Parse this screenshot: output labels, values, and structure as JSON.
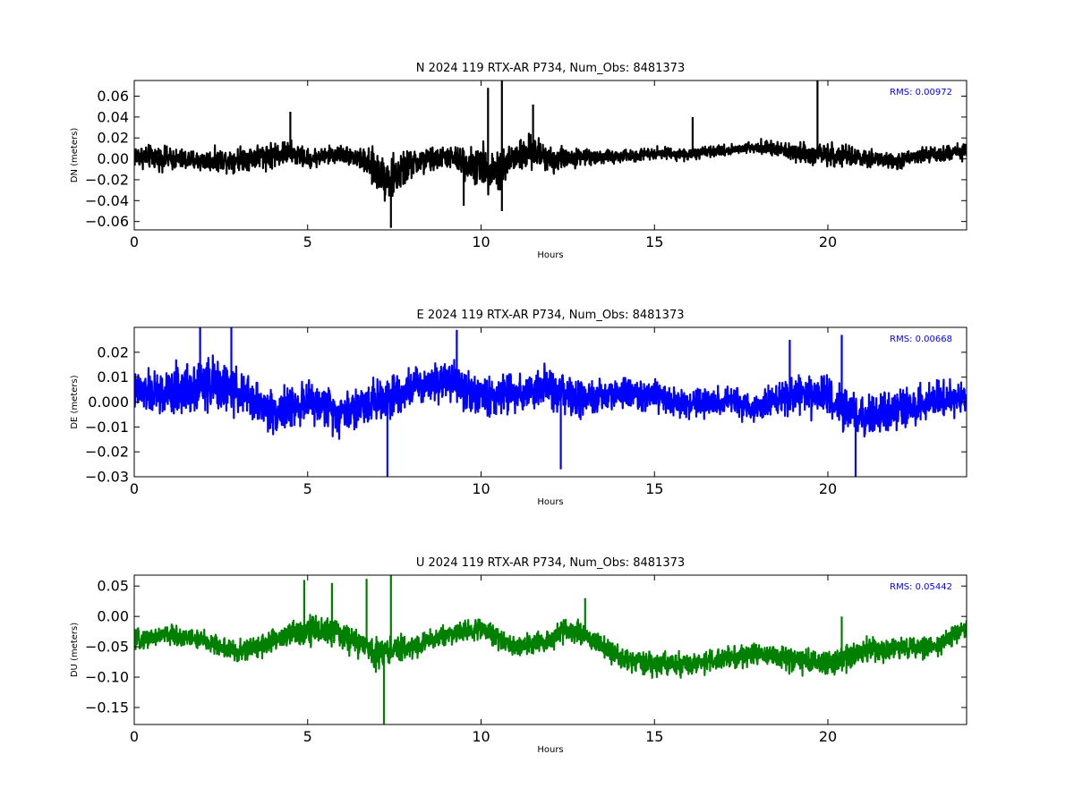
{
  "chart_data": [
    {
      "type": "line",
      "title": "N 2024 119 RTX-AR  P734, Num_Obs: 8481373",
      "xlabel": "Hours",
      "ylabel": "DN (meters)",
      "xlim": [
        0,
        24
      ],
      "ylim": [
        -0.068,
        0.075
      ],
      "xticks": [
        0,
        5,
        10,
        15,
        20
      ],
      "xtick_labels": [
        "0",
        "5",
        "10",
        "15",
        "20"
      ],
      "yticks": [
        -0.06,
        -0.04,
        -0.02,
        0.0,
        0.02,
        0.04,
        0.06
      ],
      "ytick_labels": [
        "−0.06",
        "−0.04",
        "−0.02",
        "0.00",
        "0.02",
        "0.04",
        "0.06"
      ],
      "annotation": "RMS:  0.00972",
      "annotation_color": "#0000ff",
      "grid": false,
      "series": [
        {
          "color": "#000000",
          "trend_x": [
            0,
            1,
            2,
            3,
            4,
            4.5,
            5,
            6,
            6.5,
            7,
            7.4,
            8,
            9,
            10,
            10.5,
            11,
            11.5,
            12,
            13,
            14,
            15,
            16,
            17,
            18,
            19,
            20,
            21,
            22,
            23,
            24
          ],
          "trend_y": [
            0.003,
            0.0,
            -0.002,
            0.0,
            0.004,
            0.006,
            0.0,
            0.005,
            0.0,
            -0.012,
            -0.02,
            -0.005,
            0.002,
            -0.008,
            -0.01,
            0.002,
            0.006,
            0.0,
            0.002,
            0.002,
            0.006,
            0.004,
            0.008,
            0.012,
            0.006,
            0.004,
            0.0,
            -0.002,
            0.004,
            0.008
          ],
          "amplitude_x": [
            0,
            2,
            4,
            5,
            6,
            6.5,
            7,
            7.5,
            8,
            9,
            10,
            10.5,
            11,
            12,
            12.5,
            13,
            15,
            16,
            17,
            18,
            19,
            20,
            21,
            22,
            24
          ],
          "amplitude_y": [
            0.016,
            0.014,
            0.018,
            0.013,
            0.012,
            0.014,
            0.028,
            0.03,
            0.02,
            0.014,
            0.028,
            0.03,
            0.024,
            0.02,
            0.014,
            0.01,
            0.008,
            0.008,
            0.007,
            0.008,
            0.012,
            0.016,
            0.012,
            0.011,
            0.011
          ],
          "spikes": [
            [
              4.5,
              0.045
            ],
            [
              7.4,
              -0.066
            ],
            [
              10.2,
              0.068
            ],
            [
              10.6,
              0.075
            ],
            [
              10.6,
              -0.05
            ],
            [
              16.1,
              0.04
            ],
            [
              19.7,
              0.075
            ],
            [
              11.5,
              0.052
            ],
            [
              9.5,
              -0.045
            ]
          ]
        }
      ]
    },
    {
      "type": "line",
      "title": "E 2024 119 RTX-AR  P734, Num_Obs: 8481373",
      "xlabel": "Hours",
      "ylabel": "DE (meters)",
      "xlim": [
        0,
        24
      ],
      "ylim": [
        -0.03,
        0.03
      ],
      "xticks": [
        0,
        5,
        10,
        15,
        20
      ],
      "xtick_labels": [
        "0",
        "5",
        "10",
        "15",
        "20"
      ],
      "yticks": [
        -0.03,
        -0.02,
        -0.01,
        0.0,
        0.01,
        0.02
      ],
      "ytick_labels": [
        "−0.03",
        "−0.02",
        "−0.01",
        "0.000",
        "0.01",
        "0.02"
      ],
      "annotation": "RMS:  0.00668",
      "annotation_color": "#0000ff",
      "grid": false,
      "series": [
        {
          "color": "#0000ff",
          "trend_x": [
            0,
            1,
            2,
            3,
            4,
            5,
            6,
            7,
            8,
            9,
            10,
            11,
            12,
            13,
            14,
            15,
            16,
            17,
            18,
            19,
            20,
            21,
            22,
            23,
            24
          ],
          "trend_y": [
            0.004,
            0.003,
            0.008,
            0.004,
            -0.004,
            0.0,
            -0.004,
            0.001,
            0.006,
            0.01,
            0.002,
            0.004,
            0.005,
            0.0,
            0.004,
            0.002,
            -0.001,
            0.0,
            -0.002,
            0.003,
            0.002,
            -0.007,
            -0.003,
            0.0,
            0.002
          ],
          "amplitude_x": [
            0,
            2,
            3,
            4,
            5,
            6,
            7,
            8,
            9,
            10,
            11,
            12,
            13,
            15,
            17,
            19,
            20,
            21,
            22,
            24
          ],
          "amplitude_y": [
            0.011,
            0.016,
            0.012,
            0.012,
            0.011,
            0.012,
            0.013,
            0.01,
            0.012,
            0.012,
            0.011,
            0.012,
            0.01,
            0.009,
            0.008,
            0.01,
            0.012,
            0.012,
            0.011,
            0.009
          ],
          "spikes": [
            [
              1.9,
              0.03
            ],
            [
              2.8,
              0.03
            ],
            [
              7.3,
              -0.03
            ],
            [
              9.3,
              0.029
            ],
            [
              12.3,
              -0.027
            ],
            [
              20.8,
              -0.03
            ],
            [
              18.9,
              0.025
            ],
            [
              20.4,
              0.027
            ]
          ]
        }
      ]
    },
    {
      "type": "line",
      "title": "U 2024 119 RTX-AR  P734, Num_Obs: 8481373",
      "xlabel": "Hours",
      "ylabel": "DU (meters)",
      "xlim": [
        0,
        24
      ],
      "ylim": [
        -0.178,
        0.068
      ],
      "xticks": [
        0,
        5,
        10,
        15,
        20
      ],
      "xtick_labels": [
        "0",
        "5",
        "10",
        "15",
        "20"
      ],
      "yticks": [
        -0.15,
        -0.1,
        -0.05,
        0.0,
        0.05
      ],
      "ytick_labels": [
        "−0.15",
        "−0.10",
        "−0.05",
        "0.00",
        "0.05"
      ],
      "annotation": "RMS:  0.05442",
      "annotation_color": "#0000ff",
      "grid": false,
      "series": [
        {
          "color": "#008000",
          "trend_x": [
            0,
            1,
            2,
            3,
            4,
            5,
            6,
            7,
            8,
            9,
            10,
            11,
            12,
            12.5,
            13,
            14,
            15,
            16,
            17,
            18,
            19,
            20,
            21,
            22,
            23,
            24
          ],
          "trend_y": [
            -0.04,
            -0.03,
            -0.04,
            -0.06,
            -0.04,
            -0.02,
            -0.03,
            -0.06,
            -0.05,
            -0.03,
            -0.02,
            -0.05,
            -0.04,
            -0.02,
            -0.03,
            -0.07,
            -0.08,
            -0.08,
            -0.07,
            -0.06,
            -0.07,
            -0.08,
            -0.06,
            -0.05,
            -0.05,
            -0.02
          ],
          "amplitude_x": [
            0,
            2,
            4,
            5,
            6,
            7,
            8,
            10,
            12,
            13,
            14,
            16,
            18,
            20,
            21,
            22,
            24
          ],
          "amplitude_y": [
            0.022,
            0.024,
            0.028,
            0.035,
            0.032,
            0.034,
            0.026,
            0.024,
            0.026,
            0.024,
            0.026,
            0.028,
            0.026,
            0.03,
            0.03,
            0.026,
            0.024
          ],
          "spikes": [
            [
              4.9,
              0.06
            ],
            [
              5.7,
              0.055
            ],
            [
              6.7,
              0.062
            ],
            [
              7.2,
              -0.178
            ],
            [
              7.4,
              0.068
            ],
            [
              13.0,
              0.03
            ],
            [
              20.4,
              0.0
            ]
          ]
        }
      ]
    }
  ]
}
